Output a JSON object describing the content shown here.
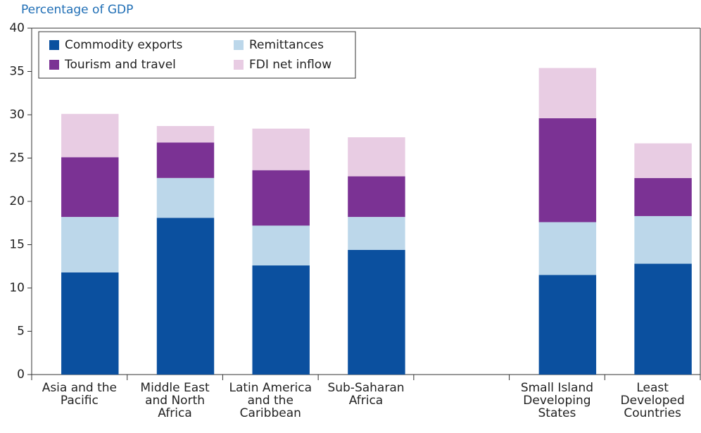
{
  "chart_data": {
    "type": "stacked_bar",
    "y_axis_label": "Percentage of GDP",
    "categories": [
      "Asia and the Pacific",
      "Middle East and North Africa",
      "Latin America and the Caribbean",
      "Sub-Saharan Africa",
      null,
      "Small Island Developing States",
      "Least Developed Countries"
    ],
    "series": [
      {
        "name": "Commodity exports",
        "color": "#0b509f",
        "values": [
          11.8,
          18.1,
          12.6,
          14.4,
          null,
          11.5,
          12.8
        ]
      },
      {
        "name": "Remittances",
        "color": "#bcd7ea",
        "values": [
          6.4,
          4.6,
          4.6,
          3.8,
          null,
          6.1,
          5.5
        ]
      },
      {
        "name": "Tourism and travel",
        "color": "#7b3294",
        "values": [
          6.9,
          4.1,
          6.4,
          4.7,
          null,
          12.0,
          4.4
        ]
      },
      {
        "name": "FDI net inflow",
        "color": "#e8cce3",
        "values": [
          5.0,
          1.9,
          4.8,
          4.5,
          null,
          5.8,
          4.0
        ]
      }
    ],
    "ylim": [
      0,
      40
    ],
    "yticks": [
      0,
      5,
      10,
      15,
      20,
      25,
      30,
      35,
      40
    ],
    "grid": false,
    "legend": "upper left"
  }
}
